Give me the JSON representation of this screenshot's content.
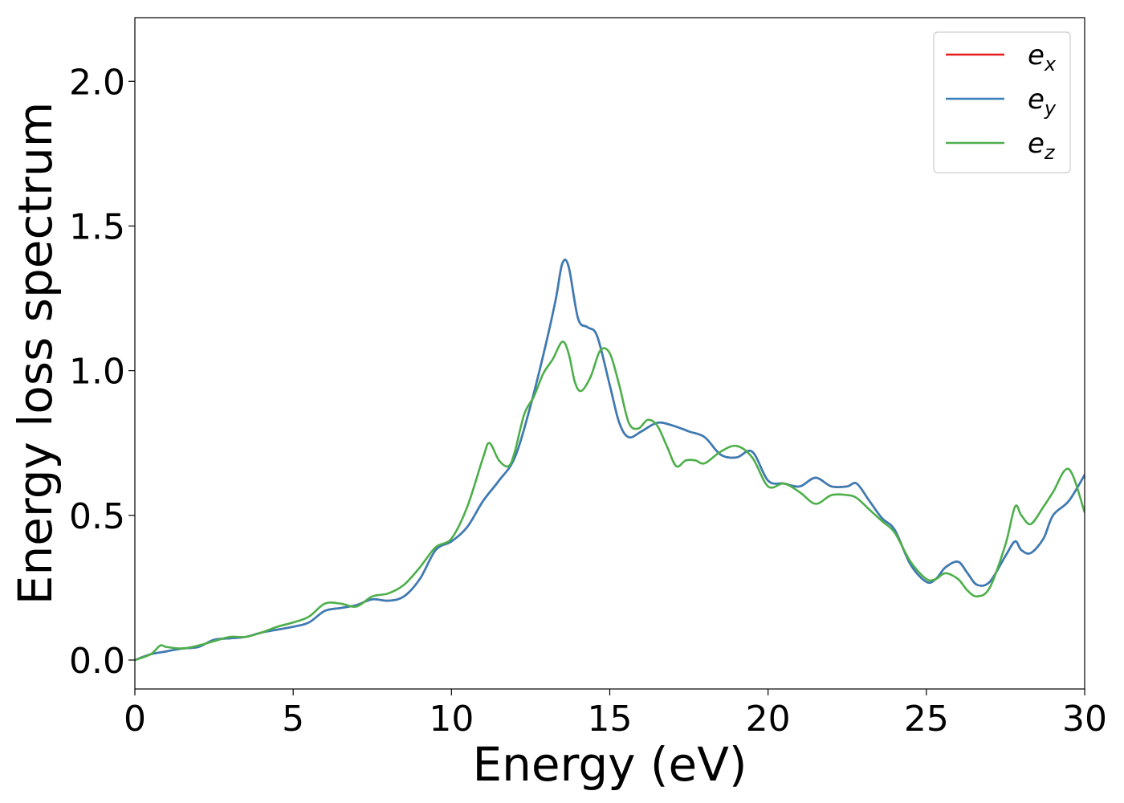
{
  "chart_data": {
    "type": "line",
    "xlabel": "Energy (eV)",
    "ylabel": "Energy loss spectrum",
    "xlim": [
      0,
      30
    ],
    "ylim": [
      -0.1,
      2.22
    ],
    "xticks": [
      0,
      5,
      10,
      15,
      20,
      25,
      30
    ],
    "yticks": [
      0.0,
      0.5,
      1.0,
      1.5,
      2.0
    ],
    "xtick_labels": [
      "0",
      "5",
      "10",
      "15",
      "20",
      "25",
      "30"
    ],
    "ytick_labels": [
      "0.0",
      "0.5",
      "1.0",
      "1.5",
      "2.0"
    ],
    "grid": false,
    "legend_position": "top-right",
    "legend": [
      {
        "base": "e",
        "sub": "x",
        "color": "#e41a1c"
      },
      {
        "base": "e",
        "sub": "y",
        "color": "#377eb8"
      },
      {
        "base": "e",
        "sub": "z",
        "color": "#4daf4a"
      }
    ],
    "series": [
      {
        "name": "e_x",
        "color": "#e41a1c",
        "x": [
          0,
          0.5,
          1,
          1.5,
          2,
          2.5,
          3,
          3.5,
          4,
          4.5,
          5,
          5.5,
          6,
          6.5,
          7,
          7.5,
          8,
          8.5,
          9,
          9.5,
          10,
          10.5,
          11,
          11.5,
          12,
          12.5,
          13,
          13.3,
          13.5,
          13.7,
          14,
          14.3,
          14.6,
          15,
          15.3,
          15.6,
          16,
          16.5,
          17,
          17.5,
          18,
          18.5,
          19,
          19.5,
          20,
          20.5,
          21,
          21.5,
          22,
          22.5,
          22.8,
          23.2,
          23.6,
          24,
          24.5,
          25,
          25.3,
          25.6,
          26,
          26.3,
          26.6,
          27,
          27.5,
          27.8,
          28,
          28.3,
          28.7,
          29,
          29.5,
          30
        ],
        "y": [
          0.0,
          0.02,
          0.03,
          0.04,
          0.045,
          0.07,
          0.075,
          0.08,
          0.095,
          0.105,
          0.115,
          0.13,
          0.17,
          0.18,
          0.19,
          0.21,
          0.205,
          0.22,
          0.28,
          0.38,
          0.41,
          0.46,
          0.55,
          0.62,
          0.7,
          0.88,
          1.1,
          1.25,
          1.37,
          1.36,
          1.18,
          1.15,
          1.12,
          0.95,
          0.82,
          0.77,
          0.79,
          0.82,
          0.81,
          0.79,
          0.77,
          0.71,
          0.7,
          0.72,
          0.62,
          0.61,
          0.6,
          0.63,
          0.6,
          0.6,
          0.61,
          0.55,
          0.49,
          0.45,
          0.33,
          0.27,
          0.28,
          0.32,
          0.34,
          0.3,
          0.26,
          0.27,
          0.36,
          0.41,
          0.38,
          0.37,
          0.42,
          0.5,
          0.55,
          0.64
        ]
      },
      {
        "name": "e_y",
        "color": "#377eb8",
        "x": [
          0,
          0.5,
          1,
          1.5,
          2,
          2.5,
          3,
          3.5,
          4,
          4.5,
          5,
          5.5,
          6,
          6.5,
          7,
          7.5,
          8,
          8.5,
          9,
          9.5,
          10,
          10.5,
          11,
          11.5,
          12,
          12.5,
          13,
          13.3,
          13.5,
          13.7,
          14,
          14.3,
          14.6,
          15,
          15.3,
          15.6,
          16,
          16.5,
          17,
          17.5,
          18,
          18.5,
          19,
          19.5,
          20,
          20.5,
          21,
          21.5,
          22,
          22.5,
          22.8,
          23.2,
          23.6,
          24,
          24.5,
          25,
          25.3,
          25.6,
          26,
          26.3,
          26.6,
          27,
          27.5,
          27.8,
          28,
          28.3,
          28.7,
          29,
          29.5,
          30
        ],
        "y": [
          0.0,
          0.02,
          0.03,
          0.04,
          0.045,
          0.07,
          0.075,
          0.08,
          0.095,
          0.105,
          0.115,
          0.13,
          0.17,
          0.18,
          0.19,
          0.21,
          0.205,
          0.22,
          0.28,
          0.38,
          0.41,
          0.46,
          0.55,
          0.62,
          0.7,
          0.88,
          1.1,
          1.25,
          1.37,
          1.36,
          1.18,
          1.15,
          1.12,
          0.95,
          0.82,
          0.77,
          0.79,
          0.82,
          0.81,
          0.79,
          0.77,
          0.71,
          0.7,
          0.72,
          0.62,
          0.61,
          0.6,
          0.63,
          0.6,
          0.6,
          0.61,
          0.55,
          0.49,
          0.45,
          0.33,
          0.27,
          0.28,
          0.32,
          0.34,
          0.3,
          0.26,
          0.27,
          0.36,
          0.41,
          0.38,
          0.37,
          0.42,
          0.5,
          0.55,
          0.64
        ]
      },
      {
        "name": "e_z",
        "color": "#4daf4a",
        "x": [
          0,
          0.5,
          0.8,
          1,
          1.5,
          2,
          2.5,
          3,
          3.5,
          4,
          4.5,
          5,
          5.5,
          6,
          6.5,
          7,
          7.5,
          8,
          8.5,
          9,
          9.5,
          10,
          10.5,
          11,
          11.2,
          11.5,
          11.8,
          12,
          12.3,
          12.6,
          12.9,
          13.2,
          13.5,
          13.7,
          13.9,
          14.1,
          14.4,
          14.7,
          15,
          15.3,
          15.6,
          15.9,
          16.2,
          16.5,
          16.8,
          17.1,
          17.4,
          17.7,
          18,
          18.5,
          19,
          19.5,
          20,
          20.5,
          21,
          21.5,
          22,
          22.5,
          22.8,
          23.2,
          23.6,
          24,
          24.5,
          25,
          25.3,
          25.6,
          26,
          26.3,
          26.6,
          27,
          27.5,
          27.8,
          28,
          28.3,
          28.7,
          29,
          29.5,
          30
        ],
        "y": [
          0.0,
          0.02,
          0.05,
          0.045,
          0.04,
          0.05,
          0.065,
          0.08,
          0.08,
          0.095,
          0.115,
          0.13,
          0.15,
          0.195,
          0.195,
          0.185,
          0.22,
          0.23,
          0.26,
          0.32,
          0.39,
          0.42,
          0.53,
          0.7,
          0.75,
          0.69,
          0.67,
          0.72,
          0.85,
          0.91,
          0.99,
          1.04,
          1.1,
          1.06,
          0.96,
          0.93,
          0.98,
          1.07,
          1.06,
          0.95,
          0.82,
          0.8,
          0.83,
          0.81,
          0.74,
          0.67,
          0.69,
          0.69,
          0.68,
          0.72,
          0.74,
          0.7,
          0.6,
          0.61,
          0.58,
          0.54,
          0.57,
          0.57,
          0.56,
          0.52,
          0.48,
          0.44,
          0.34,
          0.28,
          0.28,
          0.3,
          0.28,
          0.24,
          0.22,
          0.25,
          0.4,
          0.53,
          0.5,
          0.47,
          0.53,
          0.58,
          0.66,
          0.51
        ]
      }
    ]
  }
}
